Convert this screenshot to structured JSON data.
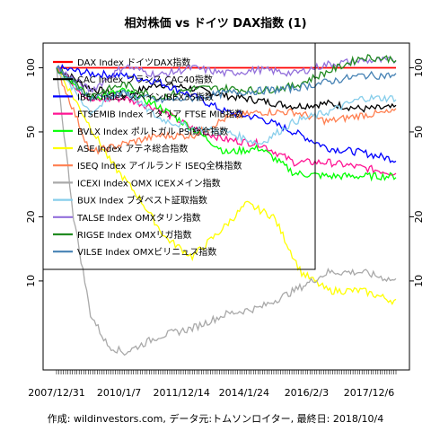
{
  "chart_data": {
    "type": "line",
    "title": "相対株価 vs ドイツ DAX指数 (1)",
    "footer": "作成: wildinvestors.com, データ元:トムソンロイター, 最終日: 2018/10/4",
    "y_scale": "log",
    "ylim": [
      3.9,
      128
    ],
    "y_ticks": [
      10,
      20,
      50,
      100
    ],
    "x_ticks": [
      "2007/12/31",
      "2010/1/7",
      "2011/12/14",
      "2014/1/24",
      "2016/2/3",
      "2017/12/6"
    ],
    "legend_position": "top-left",
    "series": [
      {
        "name": "DAX Index ドイツDAX指数",
        "color": "#ff0000",
        "points": [
          [
            0,
            100
          ],
          [
            1,
            100
          ]
        ]
      },
      {
        "name": "CAC Index フランス CAC40指数",
        "color": "#000000",
        "points": [
          [
            0,
            100
          ],
          [
            0.1,
            80
          ],
          [
            0.2,
            74
          ],
          [
            0.3,
            84
          ],
          [
            0.4,
            80
          ],
          [
            0.5,
            74
          ],
          [
            0.6,
            70
          ],
          [
            0.7,
            66
          ],
          [
            0.8,
            68
          ],
          [
            0.9,
            64
          ],
          [
            1.0,
            65
          ]
        ]
      },
      {
        "name": "IBEX Index スペインIBEX35指数",
        "color": "#0000ff",
        "points": [
          [
            0,
            100
          ],
          [
            0.1,
            94
          ],
          [
            0.2,
            92
          ],
          [
            0.3,
            86
          ],
          [
            0.4,
            74
          ],
          [
            0.5,
            62
          ],
          [
            0.6,
            58
          ],
          [
            0.7,
            50
          ],
          [
            0.8,
            42
          ],
          [
            0.9,
            40
          ],
          [
            1.0,
            37
          ]
        ]
      },
      {
        "name": "FTSEMIB Index イタリア FTSE MIB指数",
        "color": "#ff1493",
        "points": [
          [
            0,
            100
          ],
          [
            0.1,
            70
          ],
          [
            0.2,
            72
          ],
          [
            0.3,
            64
          ],
          [
            0.4,
            52
          ],
          [
            0.5,
            46
          ],
          [
            0.6,
            44
          ],
          [
            0.7,
            36
          ],
          [
            0.8,
            36
          ],
          [
            0.9,
            34
          ],
          [
            1.0,
            32
          ]
        ]
      },
      {
        "name": "BVLX Index ポルトガル PSI総合指数",
        "color": "#00ff00",
        "points": [
          [
            0,
            100
          ],
          [
            0.1,
            72
          ],
          [
            0.2,
            78
          ],
          [
            0.3,
            66
          ],
          [
            0.4,
            52
          ],
          [
            0.5,
            40
          ],
          [
            0.6,
            42
          ],
          [
            0.7,
            32
          ],
          [
            0.8,
            31
          ],
          [
            0.9,
            31
          ],
          [
            1.0,
            31
          ]
        ]
      },
      {
        "name": "ASE Index アテネ総合指数",
        "color": "#ffff00",
        "points": [
          [
            0,
            100
          ],
          [
            0.08,
            60
          ],
          [
            0.16,
            36
          ],
          [
            0.24,
            25
          ],
          [
            0.32,
            16
          ],
          [
            0.4,
            13
          ],
          [
            0.48,
            17
          ],
          [
            0.56,
            23
          ],
          [
            0.64,
            20
          ],
          [
            0.72,
            11
          ],
          [
            0.8,
            9
          ],
          [
            0.9,
            9
          ],
          [
            1.0,
            8
          ]
        ]
      },
      {
        "name": "ISEQ Index アイルランド ISEQ全株指数",
        "color": "#ff7f50",
        "points": [
          [
            0,
            100
          ],
          [
            0.1,
            40
          ],
          [
            0.2,
            44
          ],
          [
            0.3,
            48
          ],
          [
            0.4,
            48
          ],
          [
            0.5,
            58
          ],
          [
            0.6,
            62
          ],
          [
            0.7,
            62
          ],
          [
            0.8,
            56
          ],
          [
            0.9,
            60
          ],
          [
            1.0,
            62
          ]
        ]
      },
      {
        "name": "ICEXI Index OMX ICEXメイン指数",
        "color": "#a9a9a9",
        "points": [
          [
            0,
            100
          ],
          [
            0.05,
            20
          ],
          [
            0.1,
            7
          ],
          [
            0.15,
            5
          ],
          [
            0.2,
            4.6
          ],
          [
            0.3,
            5.5
          ],
          [
            0.4,
            6
          ],
          [
            0.5,
            7
          ],
          [
            0.6,
            7.5
          ],
          [
            0.7,
            9
          ],
          [
            0.8,
            11
          ],
          [
            0.9,
            11
          ],
          [
            1.0,
            10
          ]
        ]
      },
      {
        "name": "BUX Index ブダペスト証取指数",
        "color": "#87ceeb",
        "points": [
          [
            0,
            100
          ],
          [
            0.1,
            62
          ],
          [
            0.2,
            78
          ],
          [
            0.3,
            58
          ],
          [
            0.4,
            52
          ],
          [
            0.5,
            50
          ],
          [
            0.6,
            44
          ],
          [
            0.7,
            56
          ],
          [
            0.8,
            62
          ],
          [
            0.9,
            72
          ],
          [
            1.0,
            72
          ]
        ]
      },
      {
        "name": "TALSE Index OMXタリン指数",
        "color": "#9370db",
        "points": [
          [
            0,
            100
          ],
          [
            0.1,
            78
          ],
          [
            0.2,
            102
          ],
          [
            0.3,
            92
          ],
          [
            0.4,
            100
          ],
          [
            0.5,
            94
          ],
          [
            0.6,
            98
          ],
          [
            0.7,
            94
          ],
          [
            0.8,
            104
          ],
          [
            0.9,
            108
          ],
          [
            1.0,
            108
          ]
        ]
      },
      {
        "name": "RIGSE Index OMXリガ指数",
        "color": "#228b22",
        "points": [
          [
            0,
            100
          ],
          [
            0.1,
            74
          ],
          [
            0.2,
            84
          ],
          [
            0.3,
            72
          ],
          [
            0.4,
            80
          ],
          [
            0.5,
            80
          ],
          [
            0.6,
            78
          ],
          [
            0.7,
            82
          ],
          [
            0.8,
            96
          ],
          [
            0.9,
            112
          ],
          [
            1.0,
            110
          ]
        ]
      },
      {
        "name": "VILSE Index OMXビリニュス指数",
        "color": "#4682b4",
        "points": [
          [
            0,
            100
          ],
          [
            0.1,
            72
          ],
          [
            0.2,
            76
          ],
          [
            0.3,
            70
          ],
          [
            0.4,
            72
          ],
          [
            0.5,
            76
          ],
          [
            0.6,
            78
          ],
          [
            0.7,
            80
          ],
          [
            0.8,
            86
          ],
          [
            0.9,
            92
          ],
          [
            1.0,
            92
          ]
        ]
      }
    ]
  }
}
